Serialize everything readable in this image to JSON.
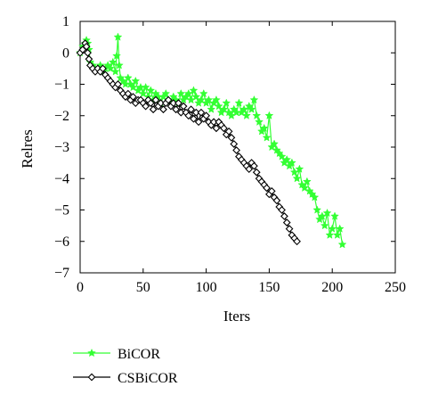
{
  "chart_data": {
    "type": "line",
    "title": "",
    "xlabel": "Iters",
    "ylabel": "Relres",
    "xlim": [
      0,
      250
    ],
    "ylim": [
      -7,
      1
    ],
    "xticks": [
      "0",
      "50",
      "100",
      "150",
      "200",
      "250"
    ],
    "yticks": [
      "1",
      "0",
      "−1",
      "−2",
      "−3",
      "−4",
      "−5",
      "−6",
      "−7"
    ],
    "grid": false,
    "legend_position": "below",
    "series": [
      {
        "name": "BiCOR",
        "color": "#33ff33",
        "marker": "star",
        "x": [
          0,
          2,
          4,
          5,
          6,
          7,
          8,
          10,
          12,
          14,
          16,
          18,
          20,
          22,
          24,
          26,
          28,
          29,
          30,
          31,
          32,
          34,
          36,
          38,
          40,
          42,
          44,
          46,
          48,
          50,
          52,
          54,
          56,
          58,
          60,
          62,
          64,
          66,
          68,
          70,
          72,
          74,
          76,
          78,
          80,
          82,
          84,
          86,
          88,
          90,
          92,
          94,
          96,
          98,
          100,
          102,
          104,
          106,
          108,
          110,
          112,
          114,
          116,
          118,
          120,
          122,
          124,
          126,
          128,
          130,
          132,
          134,
          136,
          138,
          140,
          142,
          144,
          146,
          148,
          150,
          152,
          154,
          156,
          158,
          160,
          162,
          164,
          166,
          168,
          170,
          172,
          174,
          176,
          178,
          180,
          182,
          184,
          186,
          188,
          190,
          192,
          194,
          196,
          198,
          200,
          202,
          204,
          206,
          208
        ],
        "y": [
          0,
          0.2,
          0.3,
          0.4,
          0.3,
          0.1,
          -0.3,
          -0.4,
          -0.5,
          -0.5,
          -0.4,
          -0.6,
          -0.5,
          -0.4,
          -0.5,
          -0.3,
          -0.6,
          -0.1,
          0.5,
          -0.4,
          -0.8,
          -0.9,
          -1.0,
          -0.8,
          -1.0,
          -1.1,
          -0.9,
          -1.2,
          -1.1,
          -1.3,
          -1.1,
          -1.4,
          -1.2,
          -1.5,
          -1.3,
          -1.4,
          -1.6,
          -1.4,
          -1.3,
          -1.5,
          -1.6,
          -1.4,
          -1.5,
          -1.6,
          -1.3,
          -1.5,
          -1.4,
          -1.3,
          -1.5,
          -1.2,
          -1.4,
          -1.6,
          -1.5,
          -1.3,
          -1.6,
          -1.5,
          -1.8,
          -1.6,
          -1.5,
          -1.7,
          -1.9,
          -1.8,
          -1.6,
          -1.9,
          -2.0,
          -1.8,
          -1.9,
          -1.6,
          -1.9,
          -1.8,
          -2.0,
          -1.7,
          -1.8,
          -1.5,
          -2.0,
          -2.2,
          -2.5,
          -2.4,
          -2.7,
          -2.0,
          -3.0,
          -2.9,
          -3.1,
          -3.2,
          -3.3,
          -3.5,
          -3.4,
          -3.6,
          -3.5,
          -3.8,
          -4.0,
          -3.7,
          -4.2,
          -4.3,
          -4.1,
          -4.4,
          -4.5,
          -4.6,
          -5.0,
          -5.3,
          -5.2,
          -5.5,
          -5.1,
          -5.8,
          -5.6,
          -5.2,
          -5.8,
          -5.6,
          -6.1
        ]
      },
      {
        "name": "CSBiCOR",
        "color": "#000000",
        "marker": "diamond",
        "x": [
          0,
          2,
          4,
          5,
          6,
          7,
          8,
          10,
          12,
          14,
          16,
          18,
          20,
          22,
          24,
          26,
          28,
          30,
          32,
          34,
          36,
          38,
          40,
          42,
          44,
          46,
          48,
          50,
          52,
          54,
          56,
          58,
          60,
          62,
          64,
          66,
          68,
          70,
          72,
          74,
          76,
          78,
          80,
          82,
          84,
          86,
          88,
          90,
          92,
          94,
          96,
          98,
          100,
          102,
          104,
          106,
          108,
          110,
          112,
          114,
          116,
          118,
          120,
          122,
          124,
          126,
          128,
          130,
          132,
          134,
          136,
          138,
          140,
          142,
          144,
          146,
          148,
          150,
          152,
          154,
          156,
          158,
          160,
          162,
          164,
          166,
          168,
          170,
          172
        ],
        "y": [
          0,
          0.1,
          0.3,
          0.2,
          0,
          -0.2,
          -0.4,
          -0.5,
          -0.6,
          -0.5,
          -0.6,
          -0.5,
          -0.7,
          -0.8,
          -0.9,
          -1.0,
          -1.1,
          -1.0,
          -1.2,
          -1.3,
          -1.4,
          -1.3,
          -1.5,
          -1.4,
          -1.6,
          -1.5,
          -1.5,
          -1.6,
          -1.7,
          -1.5,
          -1.6,
          -1.8,
          -1.5,
          -1.7,
          -1.6,
          -1.8,
          -1.6,
          -1.5,
          -1.7,
          -1.6,
          -1.8,
          -1.6,
          -1.9,
          -1.7,
          -1.9,
          -2.0,
          -1.8,
          -2.1,
          -1.9,
          -2.2,
          -1.9,
          -2.1,
          -2.0,
          -2.2,
          -2.3,
          -2.2,
          -2.4,
          -2.2,
          -2.3,
          -2.4,
          -2.6,
          -2.5,
          -2.7,
          -2.9,
          -3.1,
          -3.3,
          -3.4,
          -3.5,
          -3.6,
          -3.7,
          -3.5,
          -3.6,
          -3.8,
          -4.0,
          -4.1,
          -4.2,
          -4.3,
          -4.5,
          -4.4,
          -4.6,
          -4.7,
          -4.9,
          -5.0,
          -5.2,
          -5.4,
          -5.6,
          -5.8,
          -5.9,
          -6.0
        ]
      }
    ]
  }
}
